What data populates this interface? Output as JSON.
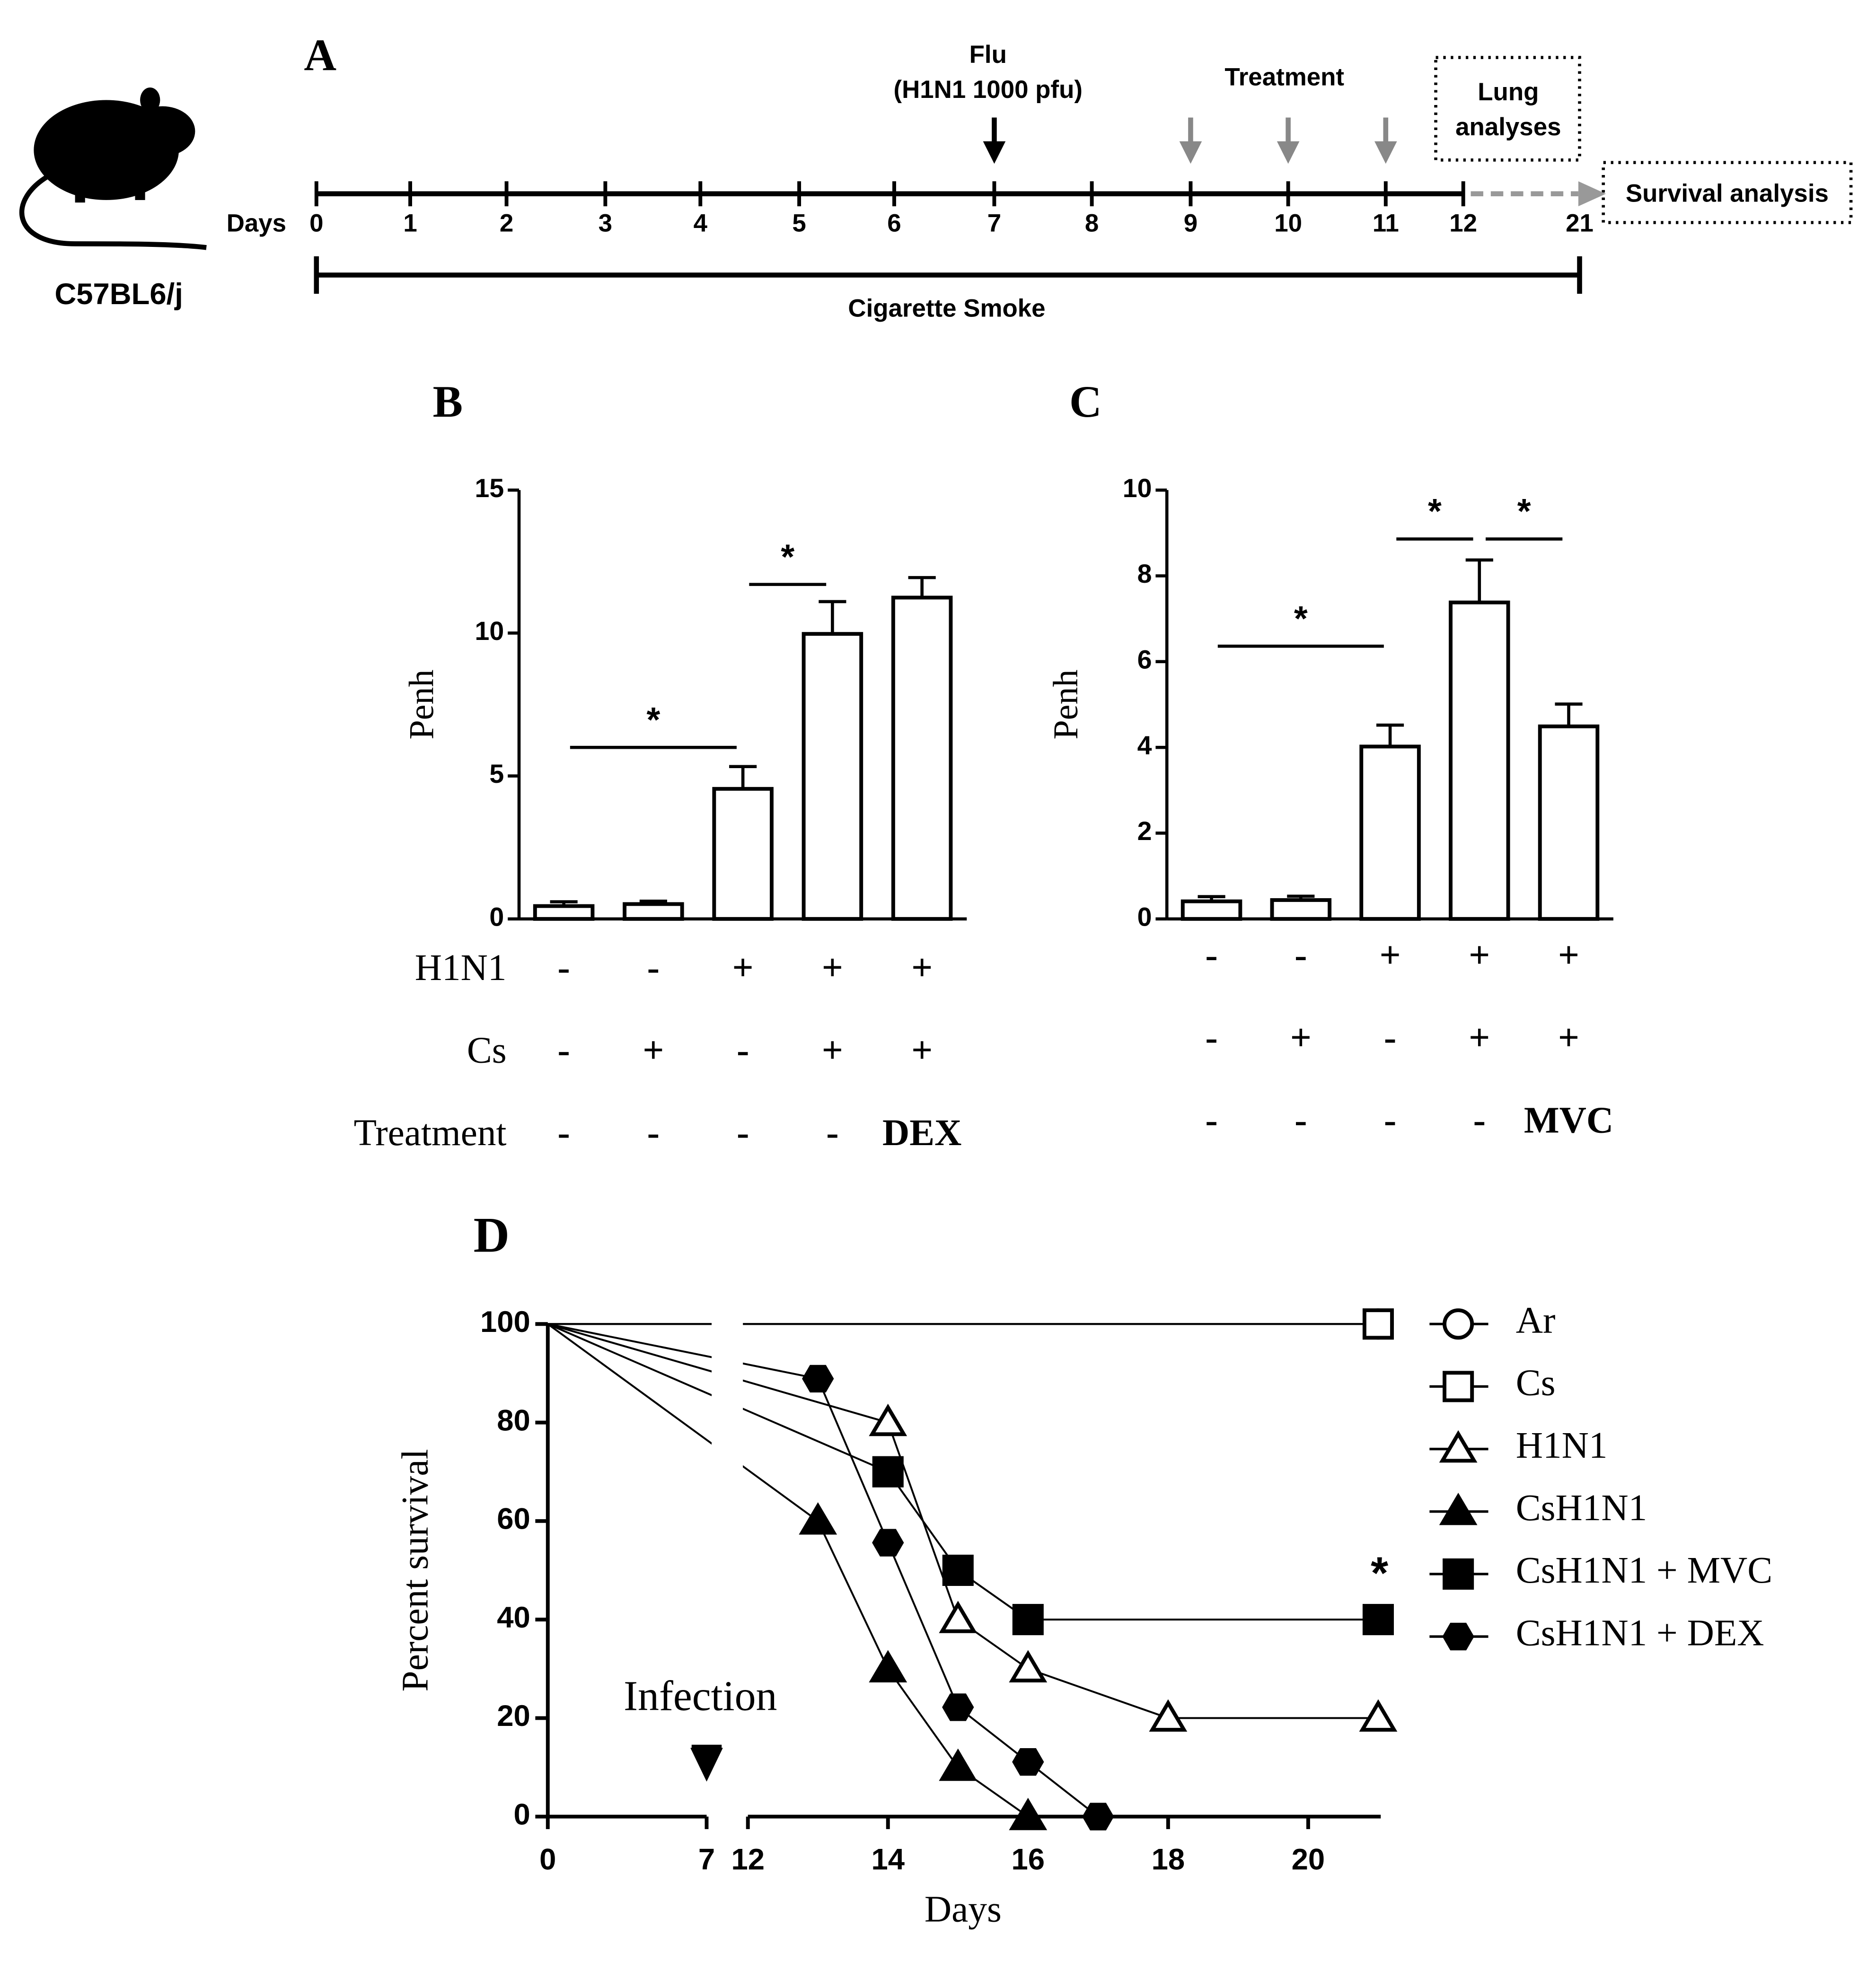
{
  "timeline": {
    "panel": "A",
    "subject": "C57BL6/j",
    "axis_label": "Days",
    "days": [
      0,
      1,
      2,
      3,
      4,
      5,
      6,
      7,
      8,
      9,
      10,
      11,
      12,
      21
    ],
    "infection": {
      "day": 7,
      "label": "Flu",
      "sublabel": "(H1N1 1000 pfu)"
    },
    "treatment": {
      "days": [
        9,
        10,
        11
      ],
      "label": "Treatment"
    },
    "lung_box": [
      "Lung",
      "analyses"
    ],
    "survival_box": "Survival analysis",
    "exposure": "Cigarette Smoke"
  },
  "chart_data": [
    {
      "type": "bar",
      "panel": "B",
      "ylabel": "Penh",
      "values": [
        0.45,
        0.52,
        4.55,
        9.97,
        11.24
      ],
      "errors": [
        0.15,
        0.1,
        0.78,
        1.13,
        0.7
      ],
      "color": "#ffffff",
      "ylim": [
        0,
        15
      ],
      "yticks": [
        0,
        5,
        10,
        15
      ],
      "conditions": [
        {
          "label": "H1N1",
          "values": [
            "-",
            "-",
            "+",
            "+",
            "+"
          ]
        },
        {
          "label": "Cs",
          "values": [
            "-",
            "+",
            "-",
            "+",
            "+"
          ]
        },
        {
          "label": "Treatment",
          "values": [
            "-",
            "-",
            "-",
            "-",
            "DEX"
          ]
        }
      ],
      "significance": [
        {
          "label": "*",
          "from": 0,
          "to": 2,
          "y": 6.0
        },
        {
          "label": "*",
          "from": 2,
          "to": 3,
          "y": 11.7
        }
      ]
    },
    {
      "type": "bar",
      "panel": "C",
      "ylabel": "Penh",
      "values": [
        0.41,
        0.44,
        4.02,
        7.38,
        4.49
      ],
      "errors": [
        0.11,
        0.09,
        0.5,
        0.99,
        0.52
      ],
      "color": "#ffffff",
      "ylim": [
        0,
        10
      ],
      "yticks": [
        0,
        2,
        4,
        6,
        8,
        10
      ],
      "conditions": [
        {
          "values": [
            "-",
            "-",
            "+",
            "+",
            "+"
          ]
        },
        {
          "values": [
            "-",
            "+",
            "-",
            "+",
            "+"
          ]
        },
        {
          "values": [
            "-",
            "-",
            "-",
            "-",
            "MVC"
          ]
        }
      ],
      "significance": [
        {
          "label": "*",
          "from": 0,
          "to": 2,
          "y": 6.36
        },
        {
          "label": "*",
          "from": 2,
          "to": 3,
          "y": 8.86
        },
        {
          "label": "*",
          "from": 3,
          "to": 4,
          "y": 8.86
        }
      ]
    },
    {
      "type": "line",
      "panel": "D",
      "xlabel": "Days",
      "ylabel": "Percent survival",
      "xlim": [
        0,
        21
      ],
      "x_break": [
        7,
        12
      ],
      "xticks": [
        0,
        7,
        12,
        14,
        16,
        18,
        20
      ],
      "ylim": [
        0,
        100
      ],
      "yticks": [
        0,
        20,
        40,
        60,
        80,
        100
      ],
      "annotation": {
        "label": "Infection",
        "x": 7
      },
      "legend": "right",
      "series": [
        {
          "name": "Ar",
          "color": "#000000",
          "marker": "circle",
          "filled": false,
          "x": [
            0,
            21
          ],
          "values": [
            100,
            100
          ]
        },
        {
          "name": "Cs",
          "color": "#000000",
          "marker": "square",
          "filled": false,
          "x": [
            0,
            21
          ],
          "values": [
            100,
            100
          ]
        },
        {
          "name": "H1N1",
          "color": "#000000",
          "marker": "triangle",
          "filled": false,
          "x": [
            0,
            14,
            15,
            16,
            18,
            21
          ],
          "values": [
            100,
            80,
            40,
            30,
            20,
            20
          ]
        },
        {
          "name": "CsH1N1",
          "color": "#000000",
          "marker": "triangle",
          "filled": true,
          "x": [
            0,
            13,
            14,
            15,
            16
          ],
          "values": [
            100,
            60,
            30,
            10,
            0
          ]
        },
        {
          "name": "CsH1N1 + MVC",
          "color": "#000000",
          "marker": "square",
          "filled": true,
          "x": [
            0,
            14,
            15,
            16,
            21
          ],
          "values": [
            100,
            70,
            50,
            40,
            40
          ],
          "annotation": "*"
        },
        {
          "name": "CsH1N1 + DEX",
          "color": "#000000",
          "marker": "hexagon",
          "filled": true,
          "x": [
            0,
            13,
            14,
            15,
            16,
            17
          ],
          "values": [
            100,
            88.9,
            55.6,
            22.2,
            11.1,
            0
          ]
        }
      ]
    }
  ]
}
